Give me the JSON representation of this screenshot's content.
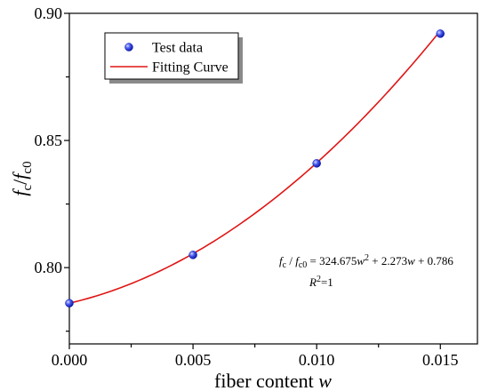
{
  "chart_data": {
    "type": "scatter",
    "x_axis": {
      "label_main": "fiber content ",
      "label_var": "w",
      "range": [
        0.0,
        0.0165
      ],
      "ticks": [
        0.0,
        0.005,
        0.01,
        0.015
      ],
      "tick_labels": [
        "0.000",
        "0.005",
        "0.010",
        "0.015"
      ]
    },
    "y_axis": {
      "label_a": "f",
      "label_a_sub": "c",
      "label_sep": "/",
      "label_b": "f",
      "label_b_sub": "c0",
      "range": [
        0.77,
        0.9
      ],
      "ticks": [
        0.8,
        0.85,
        0.9
      ],
      "tick_labels": [
        "0.80",
        "0.85",
        "0.90"
      ]
    },
    "series": [
      {
        "name": "Test data",
        "kind": "scatter",
        "color": "#2b3bd6",
        "x": [
          0.0,
          0.005,
          0.01,
          0.015
        ],
        "y": [
          0.786,
          0.805,
          0.841,
          0.892
        ]
      },
      {
        "name": "Fitting Curve",
        "kind": "line",
        "color": "#e01515",
        "coefficients": {
          "a": 324.675,
          "b": 2.273,
          "c": 0.786
        }
      }
    ],
    "legend": {
      "position": "top-left",
      "entries": [
        "Test data",
        "Fitting Curve"
      ]
    },
    "annotation": {
      "line1_lhs_f1": "f",
      "line1_lhs_sub1": "c",
      "line1_lhs_sep": " / ",
      "line1_lhs_f2": "f",
      "line1_lhs_sub2": "c0",
      "line1_rhs_eq": " = 324.675",
      "line1_rhs_w1": "w",
      "line1_rhs_sup": "2",
      "line1_rhs_mid": " + 2.273",
      "line1_rhs_w2": "w",
      "line1_rhs_end": " + 0.786",
      "line2_r": "R",
      "line2_sup": "2",
      "line2_val": "=1"
    },
    "grid": false
  }
}
